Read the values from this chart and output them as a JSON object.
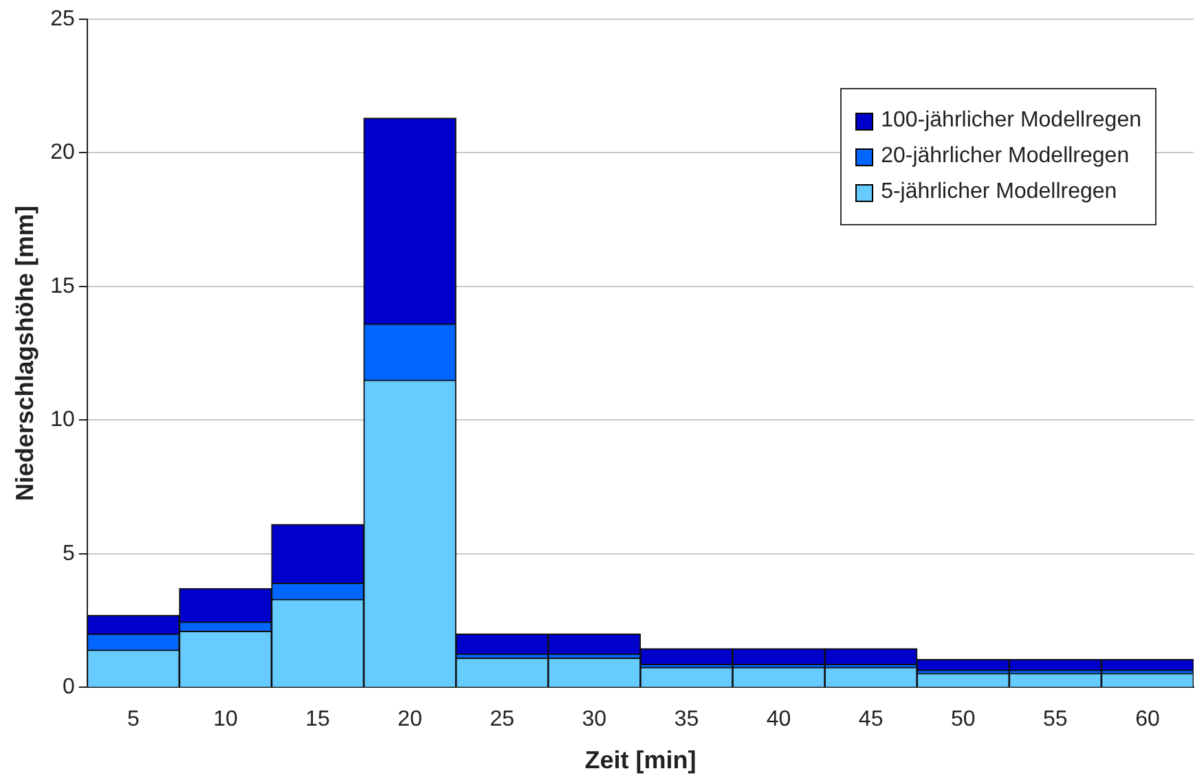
{
  "chart_data": {
    "type": "bar",
    "stacked": true,
    "xlabel": "Zeit [min]",
    "ylabel": "Niederschlagshöhe [mm]",
    "categories": [
      "5",
      "10",
      "15",
      "20",
      "25",
      "30",
      "35",
      "40",
      "45",
      "50",
      "55",
      "60"
    ],
    "series": [
      {
        "name": "5-jährlicher Modellregen",
        "color": "#66ccff",
        "values": [
          1.4,
          2.1,
          3.3,
          11.5,
          1.1,
          1.1,
          0.75,
          0.75,
          0.75,
          0.53,
          0.53,
          0.53
        ]
      },
      {
        "name": "20-jährlicher Modellregen",
        "color": "#0066ff",
        "values": [
          0.6,
          0.35,
          0.6,
          2.1,
          0.15,
          0.15,
          0.12,
          0.12,
          0.12,
          0.12,
          0.12,
          0.12
        ]
      },
      {
        "name": "100-jährlicher Modellregen",
        "color": "#0000cc",
        "values": [
          0.7,
          1.25,
          2.2,
          7.7,
          0.75,
          0.75,
          0.58,
          0.58,
          0.58,
          0.4,
          0.4,
          0.4
        ]
      }
    ],
    "ylim": [
      0,
      25
    ],
    "yticks": [
      0,
      5,
      10,
      15,
      20,
      25
    ],
    "grid": "y",
    "legend": "top right"
  }
}
